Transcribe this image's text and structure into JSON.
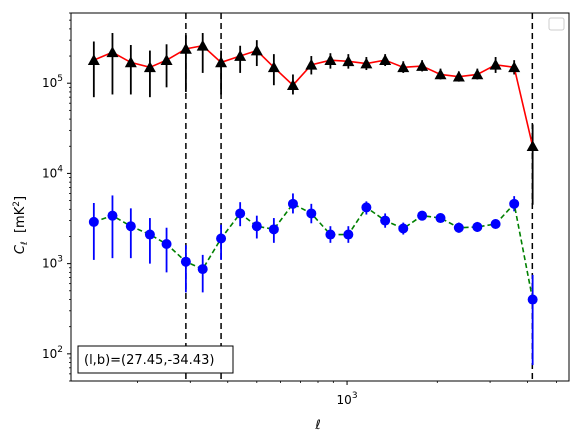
{
  "chart_data": {
    "type": "line",
    "title": "",
    "xlabel": "ℓ",
    "ylabel": "C_ℓ  [mK²]",
    "x_scale": "log",
    "y_scale": "log",
    "xlim": [
      120,
      5500
    ],
    "ylim": [
      50,
      600000
    ],
    "x_ticks": [
      {
        "value": 1000,
        "label": "10^3"
      }
    ],
    "y_ticks": [
      {
        "value": 100,
        "label": "10^2"
      },
      {
        "value": 1000,
        "label": "10^3"
      },
      {
        "value": 10000,
        "label": "10^4"
      },
      {
        "value": 100000,
        "label": "10^5"
      }
    ],
    "vlines": [
      290,
      380,
      4150
    ],
    "legend": {
      "position": "top-right",
      "entries": []
    },
    "annotation": {
      "text": "(l,b)=(27.45,-34.43)",
      "position": "bottom-left"
    },
    "series": [
      {
        "color_line": "#ff0000",
        "color_marker": "#000000",
        "marker": "triangle",
        "line_style": "solid",
        "points": [
          {
            "x": 143,
            "y": 180000,
            "lo": 70000,
            "hi": 290000
          },
          {
            "x": 165,
            "y": 220000,
            "lo": 75000,
            "hi": 360000
          },
          {
            "x": 190,
            "y": 170000,
            "lo": 75000,
            "hi": 265000
          },
          {
            "x": 220,
            "y": 150000,
            "lo": 70000,
            "hi": 230000
          },
          {
            "x": 250,
            "y": 180000,
            "lo": 90000,
            "hi": 270000
          },
          {
            "x": 290,
            "y": 240000,
            "lo": 80000,
            "hi": 340000
          },
          {
            "x": 330,
            "y": 260000,
            "lo": 130000,
            "hi": 360000
          },
          {
            "x": 380,
            "y": 170000,
            "lo": 75000,
            "hi": 230000
          },
          {
            "x": 440,
            "y": 200000,
            "lo": 130000,
            "hi": 260000
          },
          {
            "x": 500,
            "y": 230000,
            "lo": 155000,
            "hi": 300000
          },
          {
            "x": 570,
            "y": 150000,
            "lo": 95000,
            "hi": 210000
          },
          {
            "x": 660,
            "y": 95000,
            "lo": 75000,
            "hi": 125000
          },
          {
            "x": 760,
            "y": 160000,
            "lo": 125000,
            "hi": 200000
          },
          {
            "x": 880,
            "y": 180000,
            "lo": 145000,
            "hi": 215000
          },
          {
            "x": 1010,
            "y": 175000,
            "lo": 145000,
            "hi": 210000
          },
          {
            "x": 1160,
            "y": 165000,
            "lo": 140000,
            "hi": 195000
          },
          {
            "x": 1340,
            "y": 180000,
            "lo": 155000,
            "hi": 210000
          },
          {
            "x": 1540,
            "y": 150000,
            "lo": 130000,
            "hi": 175000
          },
          {
            "x": 1780,
            "y": 155000,
            "lo": 135000,
            "hi": 180000
          },
          {
            "x": 2050,
            "y": 125000,
            "lo": 110000,
            "hi": 145000
          },
          {
            "x": 2360,
            "y": 118000,
            "lo": 104000,
            "hi": 135000
          },
          {
            "x": 2720,
            "y": 125000,
            "lo": 110000,
            "hi": 145000
          },
          {
            "x": 3130,
            "y": 160000,
            "lo": 130000,
            "hi": 195000
          },
          {
            "x": 3610,
            "y": 150000,
            "lo": 125000,
            "hi": 180000
          },
          {
            "x": 4160,
            "y": 20000,
            "lo": 4500,
            "hi": 35000
          }
        ]
      },
      {
        "color_line": "#008000",
        "color_marker": "#0000ff",
        "marker": "circle",
        "line_style": "dashed",
        "points": [
          {
            "x": 143,
            "y": 2900,
            "lo": 1100,
            "hi": 4700
          },
          {
            "x": 165,
            "y": 3400,
            "lo": 1150,
            "hi": 5700
          },
          {
            "x": 190,
            "y": 2600,
            "lo": 1150,
            "hi": 4100
          },
          {
            "x": 220,
            "y": 2100,
            "lo": 1000,
            "hi": 3200
          },
          {
            "x": 250,
            "y": 1650,
            "lo": 800,
            "hi": 2500
          },
          {
            "x": 290,
            "y": 1050,
            "lo": 480,
            "hi": 1600
          },
          {
            "x": 330,
            "y": 870,
            "lo": 480,
            "hi": 1250
          },
          {
            "x": 380,
            "y": 1900,
            "lo": 1100,
            "hi": 2700
          },
          {
            "x": 440,
            "y": 3600,
            "lo": 2600,
            "hi": 4800
          },
          {
            "x": 500,
            "y": 2600,
            "lo": 1900,
            "hi": 3400
          },
          {
            "x": 570,
            "y": 2400,
            "lo": 1700,
            "hi": 3200
          },
          {
            "x": 660,
            "y": 4600,
            "lo": 3600,
            "hi": 6000
          },
          {
            "x": 760,
            "y": 3600,
            "lo": 2800,
            "hi": 4600
          },
          {
            "x": 880,
            "y": 2100,
            "lo": 1700,
            "hi": 2600
          },
          {
            "x": 1010,
            "y": 2100,
            "lo": 1700,
            "hi": 2600
          },
          {
            "x": 1160,
            "y": 4200,
            "lo": 3500,
            "hi": 4900
          },
          {
            "x": 1340,
            "y": 3000,
            "lo": 2500,
            "hi": 3600
          },
          {
            "x": 1540,
            "y": 2450,
            "lo": 2100,
            "hi": 2850
          },
          {
            "x": 1780,
            "y": 3400,
            "lo": 3000,
            "hi": 3800
          },
          {
            "x": 2050,
            "y": 3200,
            "lo": 2900,
            "hi": 3600
          },
          {
            "x": 2360,
            "y": 2500,
            "lo": 2200,
            "hi": 2850
          },
          {
            "x": 2720,
            "y": 2550,
            "lo": 2250,
            "hi": 2900
          },
          {
            "x": 3130,
            "y": 2750,
            "lo": 2450,
            "hi": 3100
          },
          {
            "x": 3610,
            "y": 4600,
            "lo": 3800,
            "hi": 5600
          },
          {
            "x": 4160,
            "y": 400,
            "lo": 75,
            "hi": 750
          }
        ]
      }
    ]
  }
}
